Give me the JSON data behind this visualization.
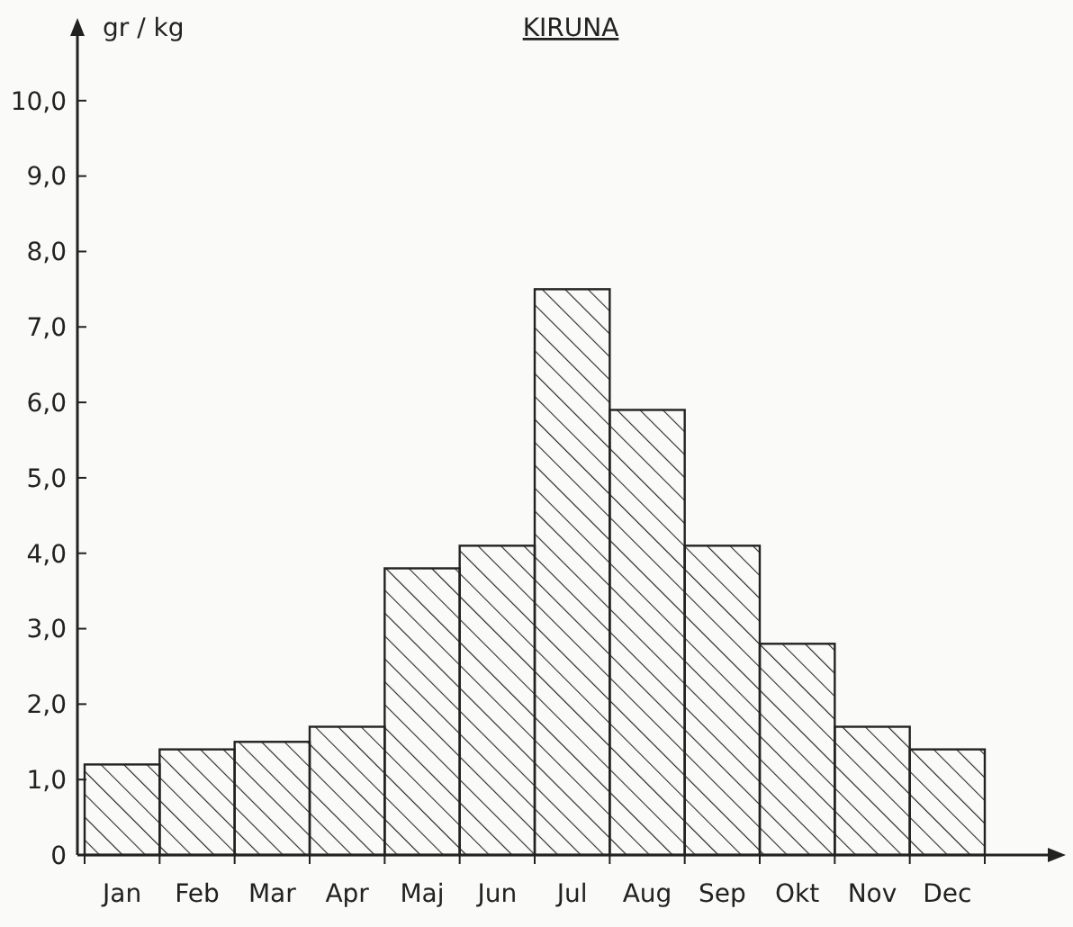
{
  "chart_data": {
    "type": "bar",
    "title": "KIRUNA",
    "ylabel": "gr / kg",
    "categories": [
      "Jan",
      "Feb",
      "Mar",
      "Apr",
      "Maj",
      "Jun",
      "Jul",
      "Aug",
      "Sep",
      "Okt",
      "Nov",
      "Dec"
    ],
    "values": [
      1.2,
      1.4,
      1.5,
      1.7,
      3.8,
      4.1,
      7.5,
      5.9,
      4.1,
      2.8,
      1.7,
      1.4
    ],
    "color": "#222222",
    "ylim": [
      0,
      11
    ],
    "yticks": [
      0,
      {
        "value": 1,
        "label": "1,0"
      },
      {
        "value": 2,
        "label": "2,0"
      },
      {
        "value": 3,
        "label": "3,0"
      },
      {
        "value": 4,
        "label": "4,0"
      },
      {
        "value": 5,
        "label": "5,0"
      },
      {
        "value": 6,
        "label": "6,0"
      },
      {
        "value": 7,
        "label": "7,0"
      },
      {
        "value": 8,
        "label": "8,0"
      },
      {
        "value": 9,
        "label": "9,0"
      },
      {
        "value": 10,
        "label": "10,0"
      }
    ],
    "grid": false
  }
}
